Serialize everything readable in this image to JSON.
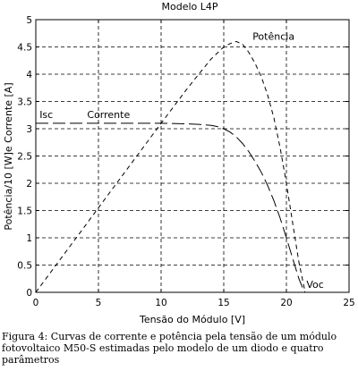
{
  "chart_data": {
    "type": "line",
    "title": "Modelo L4P",
    "xlabel": "Tensão do Módulo [V]",
    "ylabel": "Potência/10 [W]e Corrente [A]",
    "xlim": [
      0,
      25
    ],
    "ylim": [
      0,
      5
    ],
    "xticks": [
      0,
      5,
      10,
      15,
      20,
      25
    ],
    "yticks": [
      0,
      0.5,
      1,
      1.5,
      2,
      2.5,
      3,
      3.5,
      4,
      4.5,
      5
    ],
    "grid": true,
    "series": [
      {
        "name": "Corrente",
        "style": "dashed-long",
        "x": [
          0,
          2,
          4,
          6,
          8,
          10,
          12,
          13,
          14,
          14.5,
          15,
          15.5,
          16,
          16.5,
          17,
          17.5,
          18,
          18.5,
          19,
          19.5,
          20,
          20.5,
          21,
          21.3,
          21.5
        ],
        "y": [
          3.1,
          3.1,
          3.1,
          3.1,
          3.1,
          3.1,
          3.09,
          3.08,
          3.06,
          3.04,
          3.0,
          2.94,
          2.85,
          2.73,
          2.58,
          2.4,
          2.2,
          1.96,
          1.68,
          1.36,
          1.0,
          0.62,
          0.25,
          0.08,
          0
        ]
      },
      {
        "name": "Potência",
        "style": "dashed-short",
        "x": [
          0,
          2,
          4,
          6,
          8,
          10,
          12,
          13,
          14,
          15,
          15.5,
          16,
          16.5,
          17,
          17.5,
          18,
          18.5,
          19,
          19.5,
          20,
          20.5,
          21,
          21.5
        ],
        "y": [
          0,
          0.62,
          1.24,
          1.86,
          2.48,
          3.1,
          3.71,
          4.0,
          4.28,
          4.5,
          4.56,
          4.6,
          4.55,
          4.4,
          4.2,
          3.95,
          3.62,
          3.2,
          2.65,
          2.0,
          1.27,
          0.55,
          0
        ]
      }
    ],
    "annotations": [
      {
        "text": "Potência",
        "x": 17.3,
        "y": 4.63
      },
      {
        "text": "Corrente",
        "x": 4.1,
        "y": 3.2
      },
      {
        "text": "Isc",
        "x": 0.3,
        "y": 3.2
      },
      {
        "text": "Voc",
        "x": 21.6,
        "y": 0.08
      }
    ]
  },
  "caption": "Figura 4: Curvas de corrente e potência pela tensão de um módulo fotovoltaico M50-S estimadas pelo modelo de um diodo e quatro parâmetros"
}
